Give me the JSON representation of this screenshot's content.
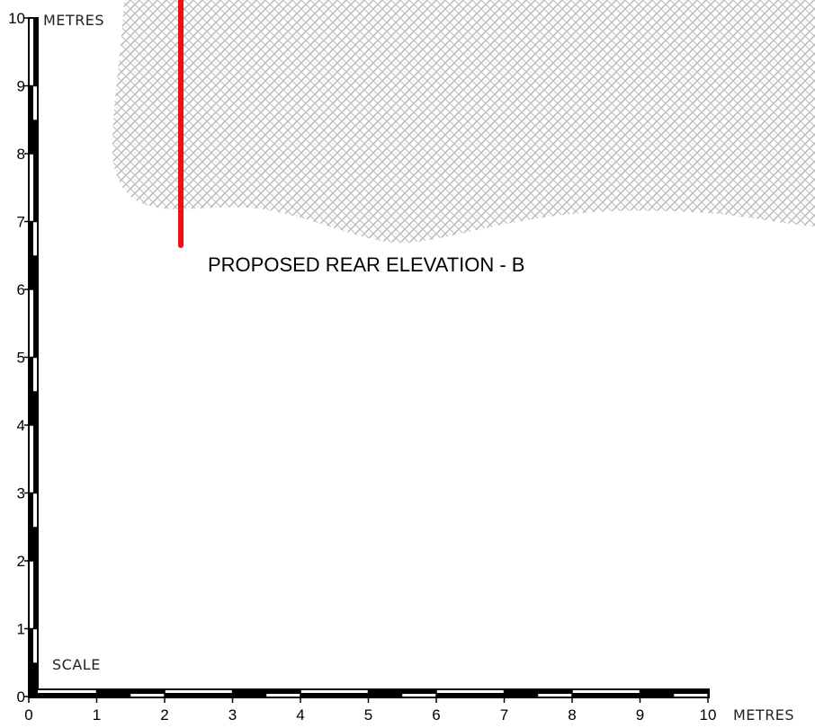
{
  "drawing": {
    "title": "PROPOSED REAR ELEVATION - B",
    "scale_label": "SCALE",
    "x_unit_label": "METRES",
    "y_unit_label": "METRES",
    "x_ticks": [
      "0",
      "1",
      "2",
      "3",
      "4",
      "5",
      "6",
      "7",
      "8",
      "9",
      "10"
    ],
    "y_ticks": [
      "0",
      "1",
      "2",
      "3",
      "4",
      "5",
      "6",
      "7",
      "8",
      "9",
      "10"
    ],
    "colors": {
      "scale_bar": "#000000",
      "hatch": "#b5b5b5",
      "section_line": "#ee1111"
    }
  }
}
